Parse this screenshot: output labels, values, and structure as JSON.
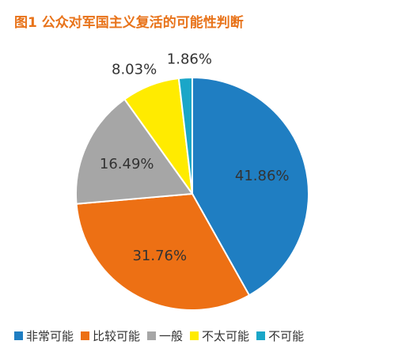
{
  "chart_data": {
    "type": "pie",
    "title": "图1 公众对军国主义复活的可能性判断",
    "categories": [
      "非常可能",
      "比较可能",
      "一般",
      "不太可能",
      "不可能"
    ],
    "values": [
      41.86,
      31.76,
      16.49,
      8.03,
      1.86
    ],
    "value_labels": [
      "41.86%",
      "31.76%",
      "16.49%",
      "8.03%",
      "1.86%"
    ],
    "colors": [
      "#1f7ec2",
      "#ed7014",
      "#a6a6a6",
      "#ffeb00",
      "#1aa6c8"
    ],
    "start_angle_deg": 0,
    "direction": "clockwise",
    "legend_position": "bottom"
  }
}
